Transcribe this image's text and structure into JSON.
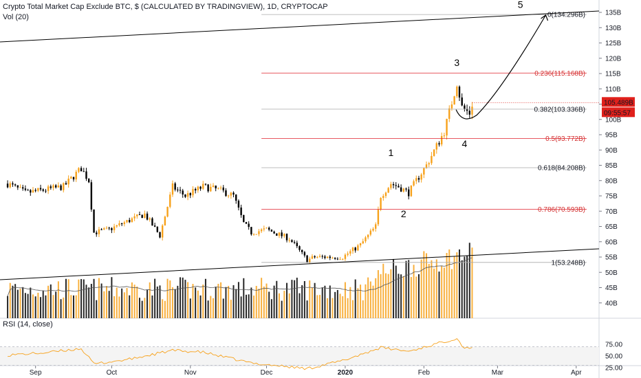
{
  "header": {
    "title": "Crypto Total Market Cap Exclude BTC, $ (CALCULATED BY TRADINGVIEW), 1D, CRYPTOCAP",
    "vol_label": "Vol (20)",
    "rsi_label": "RSI (14, close)"
  },
  "price_tag": {
    "value": "105.489B",
    "countdown": "09:55:57",
    "color": "#e0201b"
  },
  "colors": {
    "up": "#f7a11a",
    "down": "#000000",
    "fib_gray": "#a9a9a9",
    "fib_red": "#e0202b",
    "rsi": "#f7a11a"
  },
  "chart_data": {
    "type": "candlestick",
    "title": "Crypto Total Market Cap Exclude BTC, $ (CALCULATED BY TRADINGVIEW), 1D, CRYPTOCAP",
    "price_unit": "B",
    "y_ticks": [
      "135B",
      "130B",
      "125B",
      "120B",
      "115B",
      "110B",
      "105B",
      "100B",
      "95B",
      "90B",
      "85B",
      "80B",
      "75B",
      "70B",
      "65B",
      "60B",
      "55B",
      "50B",
      "45B",
      "40B"
    ],
    "x_ticks": [
      "Sep",
      "Oct",
      "Nov",
      "Dec",
      "2020",
      "Feb",
      "Mar",
      "Apr"
    ],
    "price_anchors": [
      [
        "2019-08-21",
        79
      ],
      [
        "2019-08-28",
        76
      ],
      [
        "2019-09-05",
        77
      ],
      [
        "2019-09-12",
        78
      ],
      [
        "2019-09-19",
        84
      ],
      [
        "2019-09-22",
        80
      ],
      [
        "2019-09-24",
        63
      ],
      [
        "2019-09-30",
        64
      ],
      [
        "2019-10-08",
        67
      ],
      [
        "2019-10-14",
        69
      ],
      [
        "2019-10-20",
        62
      ],
      [
        "2019-10-25",
        78
      ],
      [
        "2019-10-30",
        75
      ],
      [
        "2019-11-06",
        78
      ],
      [
        "2019-11-12",
        77
      ],
      [
        "2019-11-18",
        75
      ],
      [
        "2019-11-22",
        66
      ],
      [
        "2019-11-25",
        63
      ],
      [
        "2019-12-01",
        64
      ],
      [
        "2019-12-10",
        61
      ],
      [
        "2019-12-17",
        54
      ],
      [
        "2019-12-20",
        55
      ],
      [
        "2019-12-31",
        55
      ],
      [
        "2020-01-07",
        59
      ],
      [
        "2020-01-13",
        65
      ],
      [
        "2020-01-15",
        75
      ],
      [
        "2020-01-19",
        79
      ],
      [
        "2020-01-22",
        78
      ],
      [
        "2020-01-26",
        76
      ],
      [
        "2020-01-29",
        80
      ],
      [
        "2020-02-02",
        85
      ],
      [
        "2020-02-09",
        96
      ],
      [
        "2020-02-14",
        112
      ],
      [
        "2020-02-16",
        104
      ],
      [
        "2020-02-19",
        102
      ],
      [
        "2020-02-20",
        105
      ]
    ],
    "fib_levels": [
      {
        "ratio": "0",
        "value": 134.296,
        "label": "0(134.296B)",
        "color": "gray"
      },
      {
        "ratio": "0.236",
        "value": 115.168,
        "label": "0.236(115.168B)",
        "color": "red"
      },
      {
        "ratio": "0.382",
        "value": 103.336,
        "label": "0.382(103.336B)",
        "color": "gray"
      },
      {
        "ratio": "0.5",
        "value": 93.772,
        "label": "0.5(93.772B)",
        "color": "red"
      },
      {
        "ratio": "0.618",
        "value": 84.208,
        "label": "0.618(84.208B)",
        "color": "gray"
      },
      {
        "ratio": "0.786",
        "value": 70.593,
        "label": "0.786(70.593B)",
        "color": "red"
      },
      {
        "ratio": "1",
        "value": 53.248,
        "label": "1(53.248B)",
        "color": "gray"
      }
    ],
    "wave_labels": [
      "1",
      "2",
      "3",
      "4",
      "5"
    ],
    "last_price": 105.489,
    "rsi": {
      "label": "RSI (14, close)",
      "levels": [
        "75.00",
        "50.00",
        "25.00"
      ],
      "band": [
        30,
        70
      ],
      "anchors": [
        [
          "2019-08-21",
          52
        ],
        [
          "2019-09-05",
          57
        ],
        [
          "2019-09-19",
          66
        ],
        [
          "2019-09-24",
          33
        ],
        [
          "2019-10-08",
          43
        ],
        [
          "2019-10-25",
          62
        ],
        [
          "2019-11-06",
          58
        ],
        [
          "2019-11-25",
          35
        ],
        [
          "2019-12-17",
          23
        ],
        [
          "2019-12-31",
          40
        ],
        [
          "2020-01-15",
          68
        ],
        [
          "2020-01-26",
          60
        ],
        [
          "2020-02-14",
          88
        ],
        [
          "2020-02-17",
          66
        ],
        [
          "2020-02-20",
          70
        ]
      ]
    }
  }
}
